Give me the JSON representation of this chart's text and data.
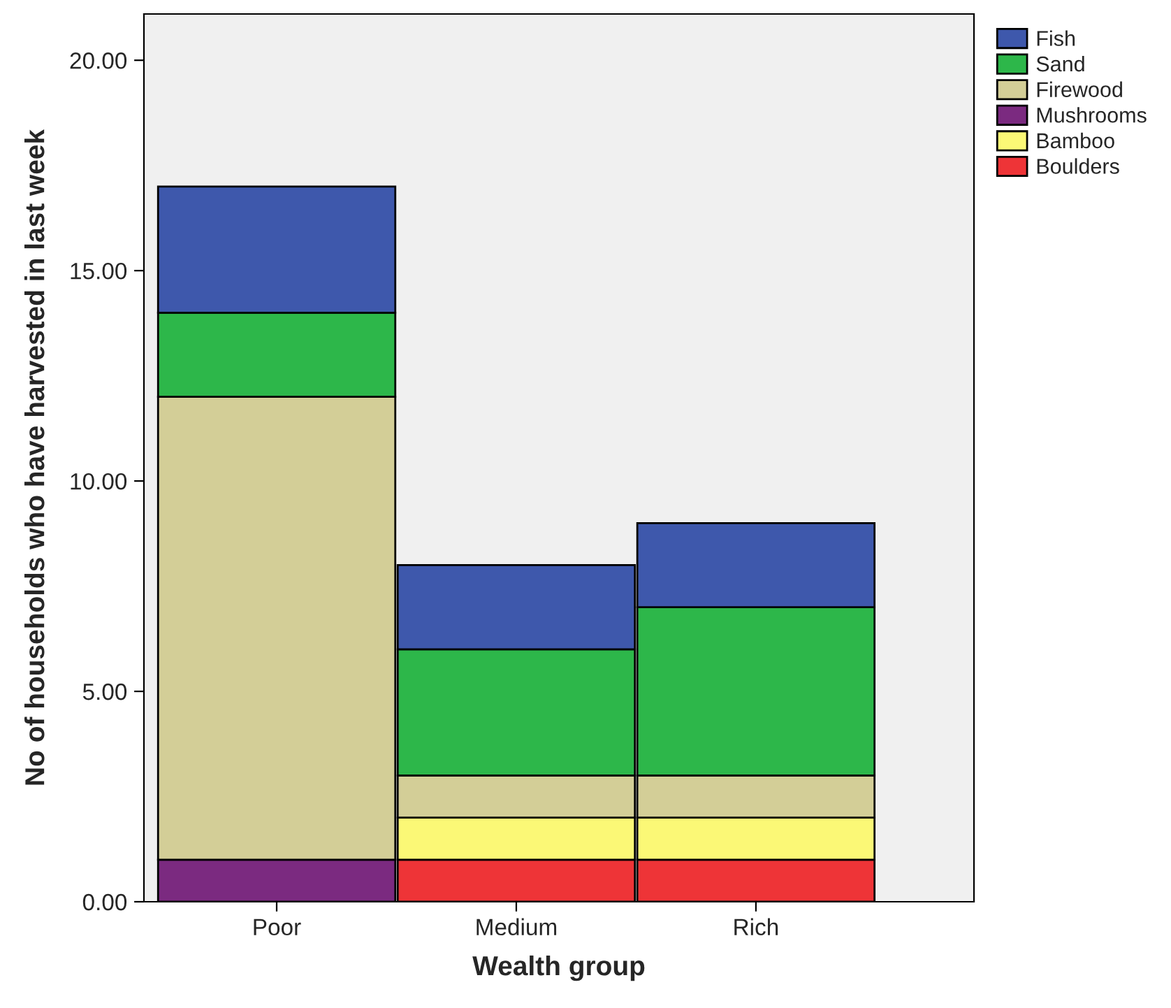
{
  "chart_data": {
    "type": "bar",
    "stacked": true,
    "xlabel": "Wealth group",
    "ylabel": "No of households who have harvested in last week",
    "categories": [
      "Poor",
      "Medium",
      "Rich"
    ],
    "series": [
      {
        "name": "Boulders",
        "color": "#ee3437",
        "values": [
          0,
          1,
          1
        ]
      },
      {
        "name": "Bamboo",
        "color": "#fbf876",
        "values": [
          0,
          1,
          1
        ]
      },
      {
        "name": "Mushrooms",
        "color": "#7b2a80",
        "values": [
          1,
          0,
          0
        ]
      },
      {
        "name": "Firewood",
        "color": "#d3ce97",
        "values": [
          11,
          1,
          1
        ]
      },
      {
        "name": "Sand",
        "color": "#2db74a",
        "values": [
          2,
          3,
          4
        ]
      },
      {
        "name": "Fish",
        "color": "#3e58ac",
        "values": [
          3,
          2,
          2
        ]
      }
    ],
    "ylim": [
      0,
      21.1
    ],
    "yticks": [
      {
        "value": 0,
        "label": "0.00"
      },
      {
        "value": 5,
        "label": "5.00"
      },
      {
        "value": 10,
        "label": "10.00"
      },
      {
        "value": 15,
        "label": "15.00"
      },
      {
        "value": 20,
        "label": "20.00"
      }
    ],
    "legend": "top right",
    "grid": false
  }
}
